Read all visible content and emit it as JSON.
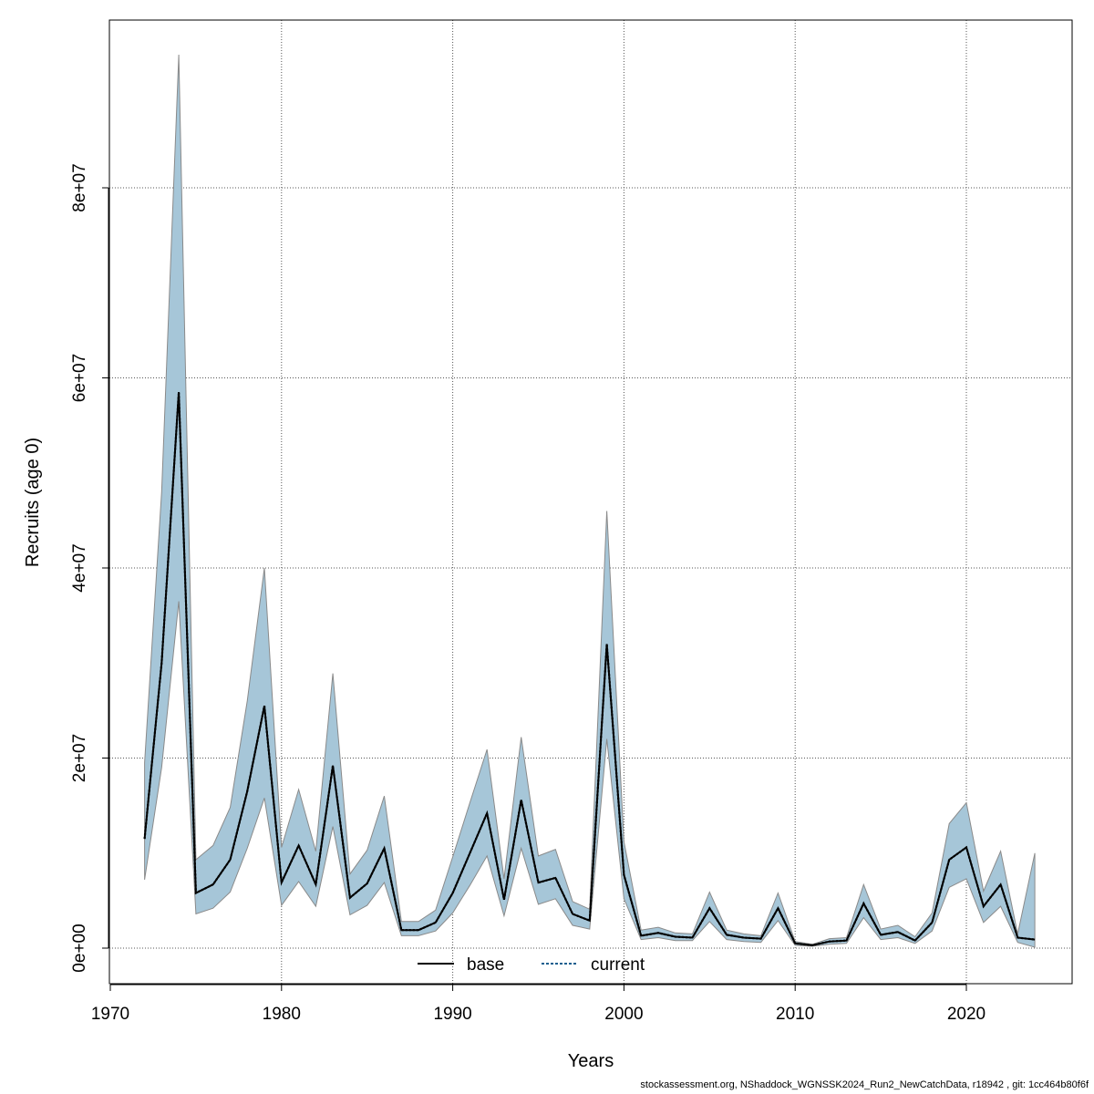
{
  "chart_data": {
    "type": "area",
    "title": "",
    "xlabel": "Years",
    "ylabel": "Recruits (age 0)",
    "xlim": [
      1972,
      2024
    ],
    "ylim": [
      0,
      95000000
    ],
    "x_ticks": [
      1970,
      1980,
      1990,
      2000,
      2010,
      2020
    ],
    "x_tick_labels": [
      "1970",
      "1980",
      "1990",
      "2000",
      "2010",
      "2020"
    ],
    "y_ticks": [
      0,
      20000000,
      40000000,
      60000000,
      80000000
    ],
    "y_tick_labels": [
      "0e+00",
      "2e+07",
      "4e+07",
      "6e+07",
      "8e+07"
    ],
    "grid": true,
    "legend_position": "bottom-center",
    "legend": [
      {
        "label": "base",
        "style": "solid",
        "color": "#000000"
      },
      {
        "label": "current",
        "style": "dotted",
        "color": "#1a5f8f"
      }
    ],
    "band_color": "#a6c6d8",
    "band_edge_color": "#8a8a8a",
    "x": [
      1972,
      1973,
      1974,
      1975,
      1976,
      1977,
      1978,
      1979,
      1980,
      1981,
      1982,
      1983,
      1984,
      1985,
      1986,
      1987,
      1988,
      1989,
      1990,
      1991,
      1992,
      1993,
      1994,
      1995,
      1996,
      1997,
      1998,
      1999,
      2000,
      2001,
      2002,
      2003,
      2004,
      2005,
      2006,
      2007,
      2008,
      2009,
      2010,
      2011,
      2012,
      2013,
      2014,
      2015,
      2016,
      2017,
      2018,
      2019,
      2020,
      2021,
      2022,
      2023,
      2024
    ],
    "series": [
      {
        "name": "base",
        "values": [
          11500000,
          30000000,
          58500000,
          5800000,
          6700000,
          9300000,
          16500000,
          25500000,
          6900000,
          10800000,
          6700000,
          19200000,
          5300000,
          6800000,
          10500000,
          1900000,
          1900000,
          2700000,
          5800000,
          10000000,
          14200000,
          5100000,
          15600000,
          6900000,
          7400000,
          3600000,
          2900000,
          32000000,
          7700000,
          1300000,
          1600000,
          1200000,
          1100000,
          4200000,
          1400000,
          1100000,
          1000000,
          4200000,
          500000,
          300000,
          700000,
          800000,
          4700000,
          1400000,
          1700000,
          800000,
          2700000,
          9300000,
          10600000,
          4400000,
          6700000,
          1100000,
          900000
        ]
      },
      {
        "name": "current",
        "values": [
          11500000,
          30000000,
          58500000,
          5800000,
          6700000,
          9300000,
          16500000,
          25500000,
          6900000,
          10800000,
          6700000,
          19200000,
          5300000,
          6800000,
          10500000,
          1900000,
          1900000,
          2700000,
          5800000,
          10000000,
          14200000,
          5100000,
          15600000,
          6900000,
          7400000,
          3600000,
          2900000,
          32000000,
          7700000,
          1300000,
          1600000,
          1200000,
          1100000,
          4200000,
          1400000,
          1100000,
          1000000,
          4200000,
          500000,
          300000,
          700000,
          800000,
          4700000,
          1400000,
          1700000,
          800000,
          2700000,
          9300000,
          10600000,
          4400000,
          6700000,
          1100000,
          900000
        ]
      }
    ],
    "upper": [
      19500000,
      48000000,
      94000000,
      9300000,
      10800000,
      14800000,
      26000000,
      40000000,
      10600000,
      16700000,
      10200000,
      28900000,
      7800000,
      10300000,
      16000000,
      2800000,
      2800000,
      4000000,
      9600000,
      15300000,
      20900000,
      7300000,
      22200000,
      9700000,
      10400000,
      4900000,
      4100000,
      46000000,
      11200000,
      1900000,
      2200000,
      1600000,
      1500000,
      5900000,
      1900000,
      1500000,
      1300000,
      5800000,
      700000,
      400000,
      1000000,
      1100000,
      6700000,
      2000000,
      2400000,
      1200000,
      3700000,
      13100000,
      15300000,
      6000000,
      10200000,
      1500000,
      10000000
    ],
    "lower": [
      7200000,
      19000000,
      36500000,
      3600000,
      4200000,
      5900000,
      10500000,
      15800000,
      4500000,
      7000000,
      4400000,
      12800000,
      3500000,
      4500000,
      6900000,
      1300000,
      1300000,
      1800000,
      3700000,
      6600000,
      9700000,
      3400000,
      10500000,
      4600000,
      5200000,
      2400000,
      2000000,
      22000000,
      5200000,
      900000,
      1100000,
      800000,
      800000,
      2800000,
      900000,
      700000,
      600000,
      2900000,
      300000,
      200000,
      400000,
      500000,
      3200000,
      900000,
      1100000,
      500000,
      1800000,
      6400000,
      7300000,
      2700000,
      4400000,
      600000,
      100000
    ]
  },
  "footer": {
    "text": "stockassessment.org, NShaddock_WGNSSK2024_Run2_NewCatchData, r18942 , git: 1cc464b80f6f"
  }
}
